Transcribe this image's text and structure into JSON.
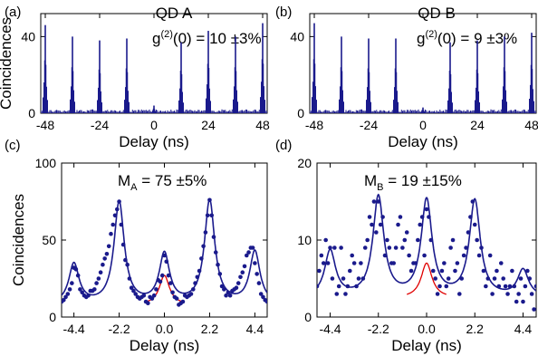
{
  "figure": {
    "panels": [
      "(a)",
      "(b)",
      "(c)",
      "(d)"
    ]
  },
  "chart_data": [
    {
      "id": "a",
      "panel_label": "(a)",
      "type": "histogram",
      "title": "QD A",
      "annotation": {
        "prefix": "g",
        "sup": "(2)",
        "suffix": "(0) = 10 ±3%"
      },
      "xlabel": "Delay (ns)",
      "ylabel": "Coincidences",
      "xlim": [
        -50,
        50
      ],
      "ylim": [
        0,
        52
      ],
      "xticks": [
        -48,
        -24,
        0,
        24,
        48
      ],
      "xticklabels": [
        "-48",
        "-24",
        "0",
        "24",
        "48"
      ],
      "yticks": [
        0,
        40
      ],
      "yticklabels": [
        "0",
        "40"
      ],
      "color": "#1a1a8c",
      "peaks": [
        {
          "x": -48,
          "y": 46
        },
        {
          "x": -36,
          "y": 40
        },
        {
          "x": -24,
          "y": 38
        },
        {
          "x": -12,
          "y": 39
        },
        {
          "x": 0,
          "y": 4
        },
        {
          "x": 12,
          "y": 37
        },
        {
          "x": 24,
          "y": 43
        },
        {
          "x": 36,
          "y": 40
        },
        {
          "x": 48,
          "y": 47
        }
      ]
    },
    {
      "id": "b",
      "panel_label": "(b)",
      "type": "histogram",
      "title": "QD B",
      "annotation": {
        "prefix": "g",
        "sup": "(2)",
        "suffix": "(0) = 9 ±3%"
      },
      "xlabel": "Delay (ns)",
      "ylabel": "",
      "xlim": [
        -50,
        50
      ],
      "ylim": [
        0,
        52
      ],
      "xticks": [
        -48,
        -24,
        0,
        24,
        48
      ],
      "xticklabels": [
        "-48",
        "-24",
        "0",
        "24",
        "48"
      ],
      "yticks": [
        0,
        40
      ],
      "yticklabels": [
        "0",
        "40"
      ],
      "color": "#1a1a8c",
      "peaks": [
        {
          "x": -48,
          "y": 47
        },
        {
          "x": -36,
          "y": 40
        },
        {
          "x": -24,
          "y": 39
        },
        {
          "x": -12,
          "y": 39
        },
        {
          "x": 0,
          "y": 3
        },
        {
          "x": 12,
          "y": 37
        },
        {
          "x": 24,
          "y": 38
        },
        {
          "x": 36,
          "y": 40
        },
        {
          "x": 48,
          "y": 42
        }
      ]
    },
    {
      "id": "c",
      "panel_label": "(c)",
      "type": "scatter",
      "title": "",
      "annotation": {
        "prefix": "M",
        "sub": "A",
        "suffix": " = 75 ±5%"
      },
      "xlabel": "Delay (ns)",
      "ylabel": "Coincidences",
      "xlim": [
        -5.0,
        5.0
      ],
      "ylim": [
        0,
        100
      ],
      "xticks": [
        -4.4,
        -2.2,
        0.0,
        2.2,
        4.4
      ],
      "xticklabels": [
        "-4.4",
        "-2.2",
        "0.0",
        "2.2",
        "4.4"
      ],
      "yticks": [
        0,
        50,
        100
      ],
      "yticklabels": [
        "0",
        "50",
        "100"
      ],
      "fit_blue": {
        "color": "#1a1a8c",
        "baseline": 8,
        "peaks": [
          {
            "x": -4.4,
            "a": 26
          },
          {
            "x": -2.2,
            "a": 66
          },
          {
            "x": 0,
            "a": 32
          },
          {
            "x": 2.2,
            "a": 67
          },
          {
            "x": 4.4,
            "a": 34
          }
        ],
        "width": 0.3
      },
      "fit_red": {
        "color": "#e00000",
        "baseline": 8,
        "xrange": [
          -0.9,
          0.9
        ],
        "peaks": [
          {
            "x": 0,
            "a": 19
          }
        ],
        "width": 0.3
      },
      "points_x": [
        -5.0,
        -4.9,
        -4.8,
        -4.7,
        -4.6,
        -4.5,
        -4.4,
        -4.3,
        -4.2,
        -4.1,
        -4.0,
        -3.9,
        -3.8,
        -3.7,
        -3.6,
        -3.5,
        -3.4,
        -3.3,
        -3.2,
        -3.1,
        -3.0,
        -2.9,
        -2.8,
        -2.7,
        -2.6,
        -2.5,
        -2.4,
        -2.3,
        -2.2,
        -2.1,
        -2.0,
        -1.9,
        -1.8,
        -1.7,
        -1.6,
        -1.5,
        -1.4,
        -1.3,
        -1.2,
        -1.1,
        -1.0,
        -0.9,
        -0.8,
        -0.7,
        -0.6,
        -0.5,
        -0.4,
        -0.3,
        -0.2,
        -0.1,
        0.0,
        0.1,
        0.2,
        0.3,
        0.4,
        0.5,
        0.6,
        0.7,
        0.8,
        0.9,
        1.0,
        1.1,
        1.2,
        1.3,
        1.4,
        1.5,
        1.6,
        1.7,
        1.8,
        1.9,
        2.0,
        2.1,
        2.2,
        2.3,
        2.4,
        2.5,
        2.6,
        2.7,
        2.8,
        2.9,
        3.0,
        3.1,
        3.2,
        3.3,
        3.4,
        3.5,
        3.6,
        3.7,
        3.8,
        3.9,
        4.0,
        4.1,
        4.2,
        4.3,
        4.4,
        4.5,
        4.6,
        4.7,
        4.8,
        4.9,
        5.0
      ],
      "points_y": [
        10,
        11,
        13,
        15,
        18,
        22,
        32,
        31,
        27,
        18,
        16,
        14,
        13,
        14,
        17,
        17,
        18,
        22,
        25,
        29,
        34,
        38,
        41,
        46,
        54,
        60,
        66,
        70,
        75,
        60,
        47,
        37,
        34,
        25,
        19,
        17,
        15,
        13,
        12,
        13,
        14,
        10,
        9,
        13,
        12,
        14,
        18,
        24,
        23,
        27,
        40,
        36,
        27,
        22,
        16,
        13,
        12,
        8,
        9,
        10,
        14,
        13,
        14,
        15,
        18,
        22,
        26,
        30,
        38,
        46,
        55,
        66,
        76,
        66,
        52,
        42,
        34,
        28,
        20,
        18,
        14,
        16,
        14,
        17,
        18,
        19,
        22,
        26,
        29,
        33,
        40,
        42,
        45,
        45,
        35,
        28,
        22,
        15,
        13,
        11,
        10
      ]
    },
    {
      "id": "d",
      "panel_label": "(d)",
      "type": "scatter",
      "title": "",
      "annotation": {
        "prefix": "M",
        "sub": "B",
        "suffix": " = 19 ±15%"
      },
      "xlabel": "Delay (ns)",
      "ylabel": "",
      "xlim": [
        -5.0,
        5.0
      ],
      "ylim": [
        0,
        20
      ],
      "xticks": [
        -4.4,
        -2.2,
        0.0,
        2.2,
        4.4
      ],
      "xticklabels": [
        "-4.4",
        "-2.2",
        "0.0",
        "2.2",
        "4.4"
      ],
      "yticks": [
        0,
        10,
        20
      ],
      "yticklabels": [
        "0",
        "10",
        "20"
      ],
      "fit_blue": {
        "color": "#1a1a8c",
        "baseline": 2.5,
        "peaks": [
          {
            "x": -4.4,
            "a": 6
          },
          {
            "x": -2.2,
            "a": 13
          },
          {
            "x": 0,
            "a": 12.5
          },
          {
            "x": 2.2,
            "a": 12.5
          },
          {
            "x": 4.4,
            "a": 3.5
          }
        ],
        "width": 0.3
      },
      "fit_red": {
        "color": "#e00000",
        "baseline": 2.5,
        "xrange": [
          -0.9,
          0.9
        ],
        "peaks": [
          {
            "x": 0,
            "a": 4.5
          }
        ],
        "width": 0.3
      },
      "points_x": [
        -5.0,
        -4.9,
        -4.8,
        -4.7,
        -4.6,
        -4.5,
        -4.4,
        -4.3,
        -4.2,
        -4.1,
        -4.0,
        -3.9,
        -3.8,
        -3.7,
        -3.6,
        -3.5,
        -3.4,
        -3.3,
        -3.2,
        -3.1,
        -3.0,
        -2.9,
        -2.8,
        -2.7,
        -2.6,
        -2.5,
        -2.4,
        -2.3,
        -2.2,
        -2.1,
        -2.0,
        -1.9,
        -1.8,
        -1.7,
        -1.6,
        -1.5,
        -1.4,
        -1.3,
        -1.2,
        -1.1,
        -1.0,
        -0.9,
        -0.8,
        -0.7,
        -0.6,
        -0.5,
        -0.4,
        -0.3,
        -0.2,
        -0.1,
        0.0,
        0.1,
        0.2,
        0.3,
        0.4,
        0.5,
        0.6,
        0.7,
        0.8,
        0.9,
        1.0,
        1.1,
        1.2,
        1.3,
        1.4,
        1.5,
        1.6,
        1.7,
        1.8,
        1.9,
        2.0,
        2.1,
        2.2,
        2.3,
        2.4,
        2.5,
        2.6,
        2.7,
        2.8,
        2.9,
        3.0,
        3.1,
        3.2,
        3.3,
        3.4,
        3.5,
        3.6,
        3.7,
        3.8,
        3.9,
        4.0,
        4.1,
        4.2,
        4.3,
        4.4,
        4.5,
        4.6,
        4.7,
        4.8,
        4.9,
        5.0
      ],
      "points_y": [
        4,
        6,
        8,
        7,
        10,
        7,
        9,
        5,
        9,
        3,
        4,
        9,
        5,
        3,
        4,
        6,
        8,
        7,
        4,
        5,
        7,
        5,
        9,
        10,
        13,
        12,
        15,
        11,
        15,
        12,
        13,
        8,
        10,
        9,
        7,
        7,
        9,
        12,
        13,
        9,
        10,
        11,
        8,
        6,
        7,
        7,
        10,
        12,
        13,
        8,
        14,
        13,
        10,
        6,
        5,
        3,
        4,
        6,
        7,
        4,
        5,
        9,
        10,
        6,
        7,
        3,
        5,
        8,
        9,
        11,
        13,
        15,
        12,
        10,
        8,
        9,
        6,
        4,
        5,
        8,
        3,
        5,
        6,
        4,
        7,
        5,
        4,
        3,
        4,
        6,
        4,
        2,
        3,
        5,
        2,
        4,
        6,
        5,
        3,
        1,
        4
      ]
    }
  ]
}
